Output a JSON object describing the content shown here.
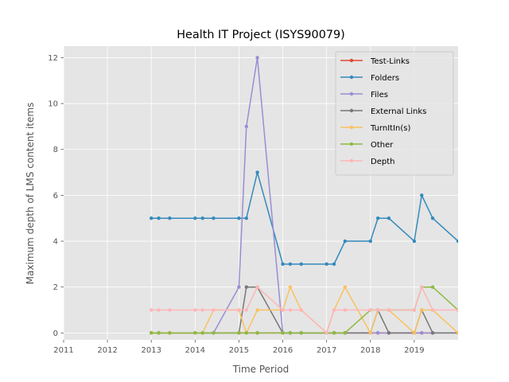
{
  "chart_data": {
    "type": "line",
    "title": "Health IT Project (ISYS90079)",
    "xlabel": "Time Period",
    "ylabel": "Maximum depth of LMS content items",
    "xlim": [
      2011,
      2020
    ],
    "ylim": [
      -0.3,
      12.5
    ],
    "x_ticks": [
      2011,
      2012,
      2013,
      2014,
      2015,
      2016,
      2017,
      2018,
      2019
    ],
    "x_tick_labels": [
      "2011",
      "2012",
      "2013",
      "2014",
      "2015",
      "2016",
      "2017",
      "2018",
      "2019"
    ],
    "y_ticks": [
      0,
      2,
      4,
      6,
      8,
      10,
      12
    ],
    "y_tick_labels": [
      "0",
      "2",
      "4",
      "6",
      "8",
      "10",
      "12"
    ],
    "grid": true,
    "legend_position": "top-right",
    "series": [
      {
        "name": "Test-Links",
        "color": "#E24A33",
        "x": [
          2013.0,
          2013.17,
          2013.42,
          2014.0,
          2014.17,
          2014.42,
          2015.0,
          2015.17,
          2015.42,
          2016.0,
          2016.17,
          2016.42,
          2017.0,
          2017.17,
          2017.42,
          2018.0,
          2018.17,
          2018.42,
          2019.0,
          2019.17,
          2019.42
        ],
        "y": [
          0,
          0,
          0,
          0,
          0,
          0,
          0,
          0,
          0,
          0,
          0,
          0,
          0,
          0,
          0,
          0,
          0,
          0,
          0,
          0,
          0
        ]
      },
      {
        "name": "Folders",
        "color": "#348ABD",
        "x": [
          2013.0,
          2013.17,
          2013.42,
          2014.0,
          2014.17,
          2014.42,
          2015.0,
          2015.17,
          2015.42,
          2016.0,
          2016.17,
          2016.42,
          2017.0,
          2017.17,
          2017.42,
          2018.0,
          2018.17,
          2018.42,
          2019.0,
          2019.17,
          2019.42,
          2020.0
        ],
        "y": [
          5,
          5,
          5,
          5,
          5,
          5,
          5,
          5,
          7,
          3,
          3,
          3,
          3,
          3,
          4,
          4,
          5,
          5,
          4,
          6,
          5,
          4
        ]
      },
      {
        "name": "Files",
        "color": "#988ED5",
        "x": [
          2013.0,
          2013.17,
          2013.42,
          2014.0,
          2014.17,
          2014.42,
          2015.0,
          2015.17,
          2015.42,
          2016.0,
          2016.17,
          2016.42,
          2017.0,
          2017.17,
          2017.42,
          2018.0,
          2018.17,
          2018.42,
          2019.0,
          2019.17,
          2019.42,
          2020.0
        ],
        "y": [
          0,
          0,
          0,
          0,
          0,
          0,
          2,
          9,
          12,
          0,
          0,
          0,
          0,
          0,
          0,
          0,
          0,
          0,
          0,
          0,
          0,
          0
        ]
      },
      {
        "name": "External Links",
        "color": "#777777",
        "x": [
          2013.0,
          2013.17,
          2013.42,
          2014.0,
          2014.17,
          2014.42,
          2015.0,
          2015.17,
          2015.42,
          2016.0,
          2016.17,
          2016.42,
          2017.0,
          2017.17,
          2017.42,
          2018.0,
          2018.17,
          2018.42,
          2019.0,
          2019.17,
          2019.42,
          2020.0
        ],
        "y": [
          0,
          0,
          0,
          0,
          0,
          0,
          0,
          2,
          2,
          0,
          0,
          0,
          0,
          0,
          0,
          0,
          1,
          0,
          0,
          1,
          0,
          0
        ]
      },
      {
        "name": "TurnItIn(s)",
        "color": "#FBC15E",
        "x": [
          2013.0,
          2013.17,
          2013.42,
          2014.0,
          2014.17,
          2014.42,
          2015.0,
          2015.17,
          2015.42,
          2016.0,
          2016.17,
          2016.42,
          2017.0,
          2017.17,
          2017.42,
          2018.0,
          2018.17,
          2018.42,
          2019.0,
          2019.17,
          2019.42,
          2020.0
        ],
        "y": [
          0,
          0,
          0,
          0,
          0,
          1,
          1,
          0,
          1,
          1,
          2,
          1,
          0,
          1,
          2,
          0,
          1,
          1,
          0,
          1,
          1,
          0
        ]
      },
      {
        "name": "Other",
        "color": "#8EBA42",
        "x": [
          2013.0,
          2013.17,
          2013.42,
          2014.0,
          2014.17,
          2014.42,
          2015.0,
          2015.17,
          2015.42,
          2016.0,
          2016.17,
          2016.42,
          2017.0,
          2017.17,
          2017.42,
          2018.0,
          2018.17,
          2018.42,
          2019.0,
          2019.17,
          2019.42,
          2020.0
        ],
        "y": [
          0,
          0,
          0,
          0,
          0,
          0,
          0,
          0,
          0,
          0,
          0,
          0,
          0,
          0,
          0,
          1,
          1,
          1,
          1,
          2,
          2,
          1
        ]
      },
      {
        "name": "Depth",
        "color": "#FFB5B8",
        "x": [
          2013.0,
          2013.17,
          2013.42,
          2014.0,
          2014.17,
          2014.42,
          2015.0,
          2015.17,
          2015.42,
          2016.0,
          2016.17,
          2016.42,
          2017.0,
          2017.17,
          2017.42,
          2018.0,
          2018.17,
          2018.42,
          2019.0,
          2019.17,
          2019.42,
          2020.0
        ],
        "y": [
          1,
          1,
          1,
          1,
          1,
          1,
          1,
          1,
          2,
          1,
          1,
          1,
          0,
          1,
          1,
          1,
          1,
          1,
          1,
          2,
          1,
          1
        ]
      }
    ]
  }
}
